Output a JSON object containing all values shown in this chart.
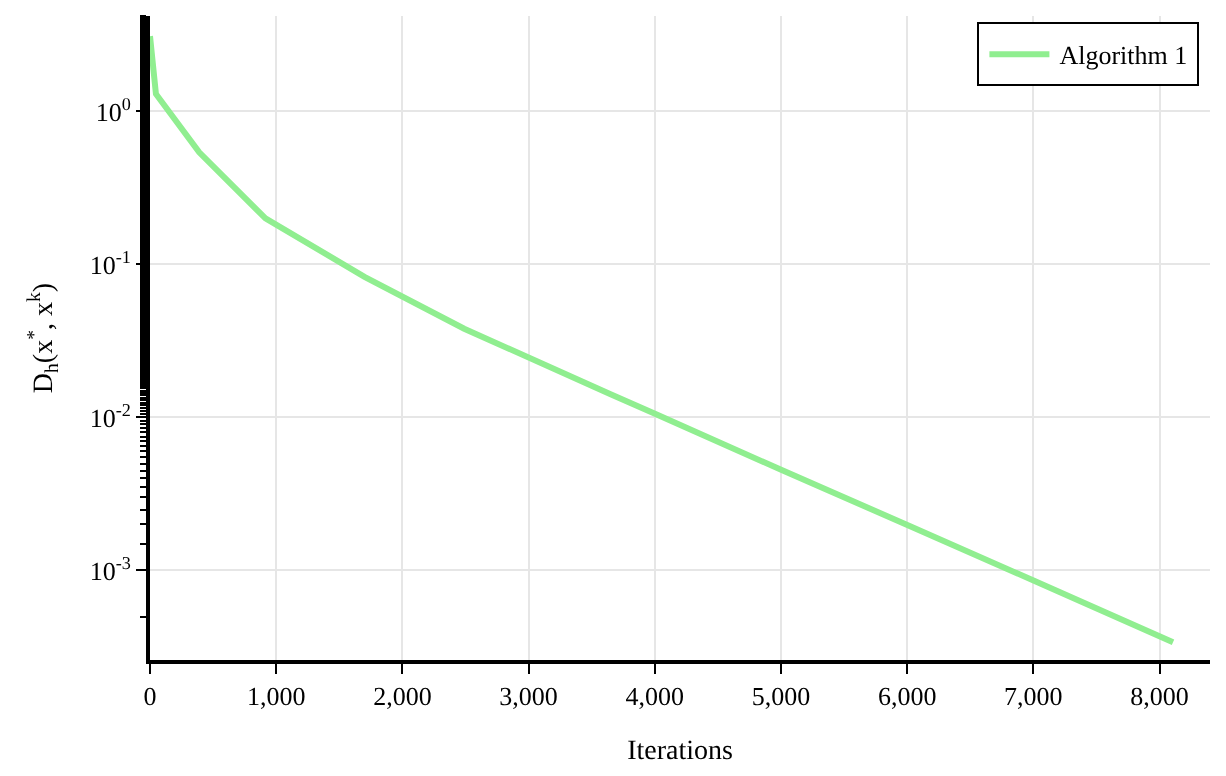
{
  "chart_data": {
    "type": "line",
    "xlabel": "Iterations",
    "ylabel": "D$_{h}$(x$^{*}$, x$^{k}$)",
    "x": [
      0,
      47,
      390,
      915,
      1700,
      2490,
      3650,
      4020,
      5015,
      6015,
      7015,
      8107
    ],
    "series": [
      {
        "name": "Algorithm 1",
        "color": "#90ee90",
        "values": [
          3.1,
          1.3,
          0.54,
          0.2,
          0.083,
          0.038,
          0.0142,
          0.0104,
          0.0045,
          0.00196,
          0.00085,
          0.00034
        ]
      }
    ],
    "log": "y",
    "grid": true,
    "legend": "top right",
    "marker": "none",
    "line_style": "solid",
    "xlim": [
      0,
      8400
    ],
    "ylim": [
      0.00026,
      4.2
    ],
    "xticks": [
      0,
      {
        "value": 1000,
        "label": "1,000"
      },
      {
        "value": 2000,
        "label": "2,000"
      },
      {
        "value": 3000,
        "label": "3,000"
      },
      {
        "value": 4000,
        "label": "4,000"
      },
      {
        "value": 5000,
        "label": "5,000"
      },
      {
        "value": 6000,
        "label": "6,000"
      },
      {
        "value": 7000,
        "label": "7,000"
      },
      {
        "value": 8000,
        "label": "8,000"
      }
    ],
    "yticks": [
      {
        "value": 0.001,
        "label": "10$^{-3}$"
      },
      {
        "value": 0.01,
        "label": "10$^{-2}$"
      },
      {
        "value": 0.1,
        "label": "10$^{-1}$"
      },
      {
        "value": 1,
        "label": "10$^{0}$"
      }
    ]
  }
}
